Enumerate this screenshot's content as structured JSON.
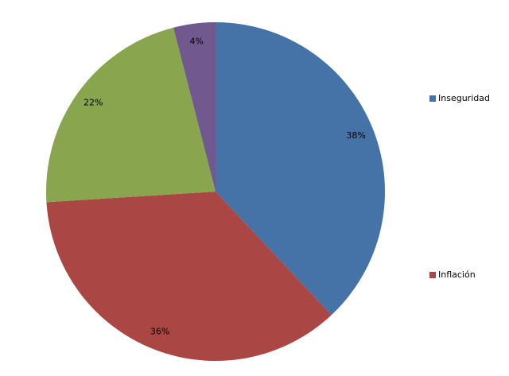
{
  "chart_data": {
    "type": "pie",
    "categories": [
      "Inseguridad",
      "Inflación",
      null,
      null
    ],
    "values": [
      38,
      36,
      22,
      4
    ],
    "value_labels": [
      "38%",
      "36%",
      "22%",
      "4%"
    ],
    "colors": [
      "#4572a7",
      "#aa4643",
      "#89a54e",
      "#71588f"
    ],
    "legend": "right"
  }
}
